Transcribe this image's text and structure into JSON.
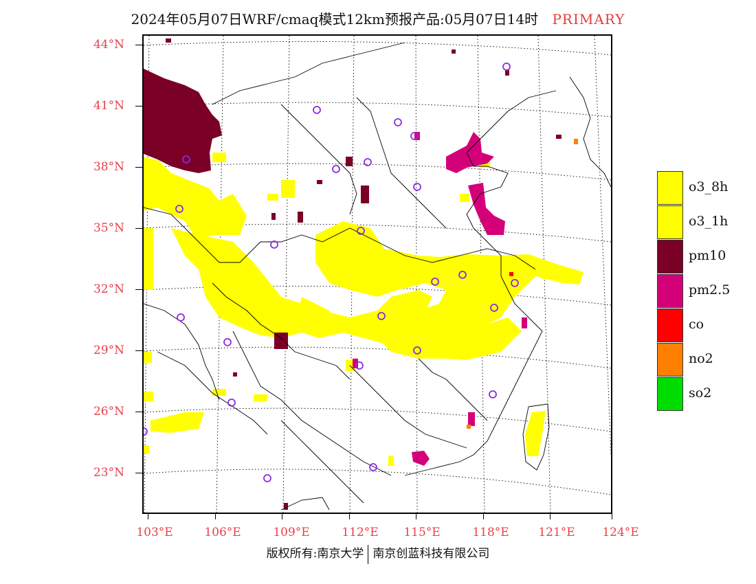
{
  "title": {
    "main": "2024年05月07日WRF/cmaq模式12km预报产品:05月07日14时",
    "tag": "PRIMARY",
    "tag_color": "#e63b3b"
  },
  "map": {
    "lat_labels": [
      "44°N",
      "41°N",
      "38°N",
      "35°N",
      "32°N",
      "29°N",
      "26°N",
      "23°N"
    ],
    "lon_labels": [
      "103°E",
      "106°E",
      "109°E",
      "112°E",
      "115°E",
      "118°E",
      "121°E",
      "124°E"
    ],
    "label_color": "#e8404a",
    "city_marker_color": "#8a2be2",
    "pollutant_colors": {
      "o3": "#ffff00",
      "pm10": "#7a0026",
      "pm25": "#d4007a",
      "co": "#ff0000",
      "no2": "#ff8000",
      "so2": "#00dd00"
    }
  },
  "legend": {
    "items": [
      {
        "label": "o3_8h",
        "color": "#ffff00"
      },
      {
        "label": "o3_1h",
        "color": "#ffff00"
      },
      {
        "label": "pm10",
        "color": "#7a0026"
      },
      {
        "label": "pm2.5",
        "color": "#d4007a"
      },
      {
        "label": "co",
        "color": "#ff0000"
      },
      {
        "label": "no2",
        "color": "#ff8000"
      },
      {
        "label": "so2",
        "color": "#00dd00"
      }
    ]
  },
  "footer": {
    "left": "版权所有:南京大学",
    "right": "南京创蓝科技有限公司"
  }
}
